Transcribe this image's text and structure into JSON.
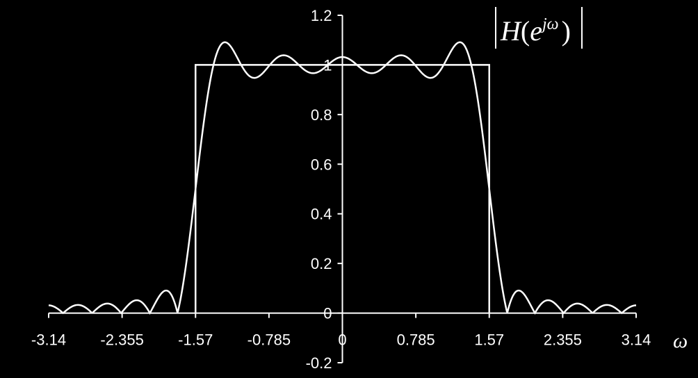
{
  "chart_data": {
    "type": "line",
    "title": "|H(e^jω)|",
    "title_parts": {
      "h": "H",
      "open": "(",
      "e": "e",
      "sup": "jω",
      "close": ")"
    },
    "xlabel": "ω",
    "ylabel": "",
    "xlim": [
      -3.14,
      3.14
    ],
    "ylim": [
      -0.2,
      1.2
    ],
    "x_ticks": [
      "-3.14",
      "-2.355",
      "-1.57",
      "-0.785",
      "0",
      "0.785",
      "1.57",
      "2.355",
      "3.14"
    ],
    "x_tick_values": [
      -3.14,
      -2.355,
      -1.57,
      -0.785,
      0,
      0.785,
      1.57,
      2.355,
      3.14
    ],
    "y_ticks": [
      "1.2",
      "1",
      "0.8",
      "0.6",
      "0.4",
      "0.2",
      "0",
      "-0.2"
    ],
    "y_tick_values": [
      1.2,
      1.0,
      0.8,
      0.6,
      0.4,
      0.2,
      0,
      -0.2
    ],
    "grid": false,
    "series": [
      {
        "role": "ideal",
        "x": [
          -1.57,
          -1.57,
          1.57,
          1.57
        ],
        "y": [
          0,
          1,
          1,
          0
        ]
      },
      {
        "role": "actual",
        "cutoff": 1.57,
        "taps": 21
      }
    ],
    "line_color": "#ffffff",
    "background_color": "#000000"
  }
}
